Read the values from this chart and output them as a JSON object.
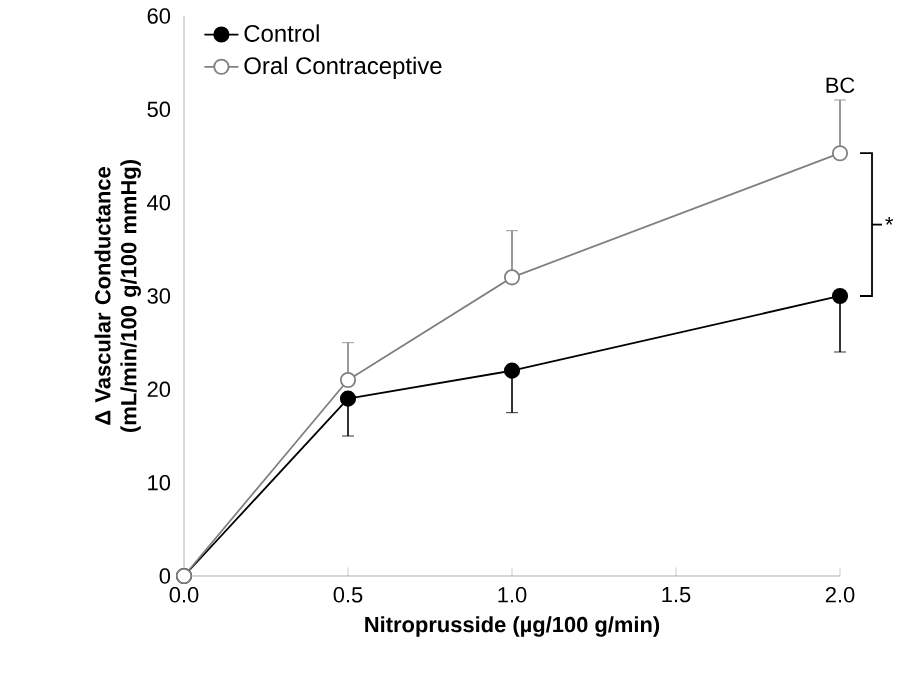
{
  "chart_data": {
    "type": "line",
    "xlabel": "Nitroprusside (µg/100 g/min)",
    "ylabel": "Δ Vascular Conductance (mL/min/100 g/100 mmHg)",
    "x": [
      0,
      0.5,
      1.0,
      2.0
    ],
    "series": [
      {
        "name": "Control",
        "color": "#000000",
        "values": [
          0,
          19,
          22,
          30
        ],
        "errors": [
          null,
          [
            15,
            19
          ],
          [
            17.5,
            22
          ],
          [
            24,
            30
          ]
        ]
      },
      {
        "name": "Oral Contraceptive",
        "color": "#808080",
        "values": [
          0,
          21,
          32,
          45.3
        ],
        "errors": [
          null,
          [
            21,
            25
          ],
          [
            32,
            37
          ],
          [
            45.3,
            51
          ]
        ]
      }
    ],
    "xlim": [
      0,
      2
    ],
    "ylim": [
      0,
      60
    ],
    "xticks": [
      {
        "value": 0,
        "label": "0.0"
      },
      {
        "value": 0.5,
        "label": "0.5"
      },
      {
        "value": 1,
        "label": "1.0"
      },
      {
        "value": 1.5,
        "label": "1.5"
      },
      {
        "value": 2,
        "label": "2.0"
      }
    ],
    "yticks": [
      0,
      10,
      20,
      30,
      40,
      50,
      60
    ],
    "annotations": [
      {
        "text": "BC",
        "x": 2,
        "y": 51
      },
      "*"
    ],
    "legend": "top left",
    "marker": "circle",
    "grid": false,
    "line_style": "solid"
  }
}
